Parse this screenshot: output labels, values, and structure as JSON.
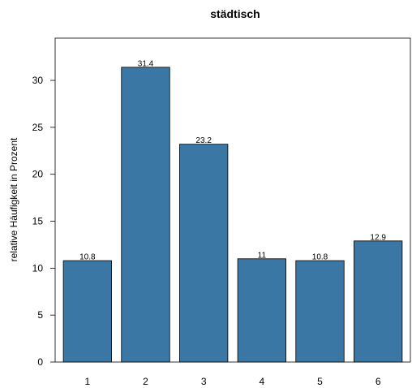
{
  "chart_data": {
    "type": "bar",
    "title": "städtisch",
    "xlabel": "",
    "ylabel": "relative Häufigkeit in Prozent",
    "categories": [
      "1",
      "2",
      "3",
      "4",
      "5",
      "6"
    ],
    "values": [
      10.8,
      31.4,
      23.2,
      11,
      10.8,
      12.9
    ],
    "value_labels": [
      "10.8",
      "31.4",
      "23.2",
      "11",
      "10.8",
      "12.9"
    ],
    "ylim": [
      0,
      34.5
    ],
    "yticks": [
      0,
      5,
      10,
      15,
      20,
      25,
      30
    ],
    "bar_color": "#3b77a4",
    "grid": false,
    "legend": "none"
  }
}
